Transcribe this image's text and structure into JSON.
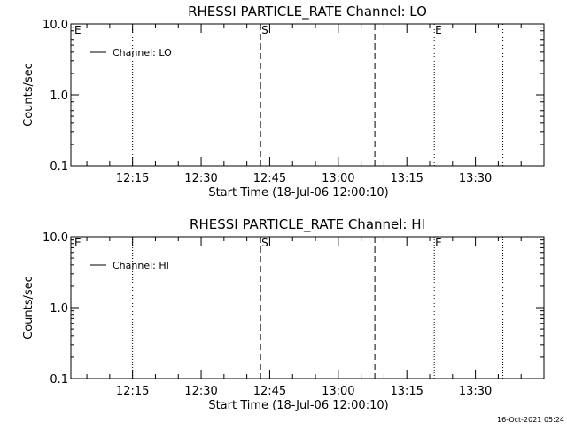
{
  "chart_data": [
    {
      "type": "line",
      "title": "RHESSI PARTICLE_RATE Channel: LO",
      "xlabel": "Start Time (18-Jul-06 12:00:10)",
      "ylabel": "Counts/sec",
      "y_scale": "log",
      "ylim": [
        0.1,
        10.0
      ],
      "y_ticks": [
        {
          "value": 0.1,
          "label": "0.1"
        },
        {
          "value": 1.0,
          "label": "1.0"
        },
        {
          "value": 10.0,
          "label": "10.0"
        }
      ],
      "x_ticks": [
        {
          "label": "12:15"
        },
        {
          "label": "12:30"
        },
        {
          "label": "12:45"
        },
        {
          "label": "13:00"
        },
        {
          "label": "13:15"
        },
        {
          "label": "13:30"
        }
      ],
      "series": [
        {
          "name": "Channel: LO",
          "values": []
        }
      ],
      "legend_position": "top-left",
      "grid": false,
      "markers": [
        {
          "label": "E",
          "style": "dotted",
          "position": "left-edge"
        },
        {
          "label": "",
          "style": "dotted",
          "time": "12:15"
        },
        {
          "label": "S",
          "style": "dashed",
          "time": "12:43"
        },
        {
          "label": "",
          "style": "dashed",
          "time": "13:08"
        },
        {
          "label": "E",
          "style": "dotted",
          "time": "13:21"
        },
        {
          "label": "",
          "style": "dotted",
          "time": "13:36"
        }
      ]
    },
    {
      "type": "line",
      "title": "RHESSI PARTICLE_RATE Channel: HI",
      "xlabel": "Start Time (18-Jul-06 12:00:10)",
      "ylabel": "Counts/sec",
      "y_scale": "log",
      "ylim": [
        0.1,
        10.0
      ],
      "y_ticks": [
        {
          "value": 0.1,
          "label": "0.1"
        },
        {
          "value": 1.0,
          "label": "1.0"
        },
        {
          "value": 10.0,
          "label": "10.0"
        }
      ],
      "x_ticks": [
        {
          "label": "12:15"
        },
        {
          "label": "12:30"
        },
        {
          "label": "12:45"
        },
        {
          "label": "13:00"
        },
        {
          "label": "13:15"
        },
        {
          "label": "13:30"
        }
      ],
      "series": [
        {
          "name": "Channel: HI",
          "values": []
        }
      ],
      "legend_position": "top-left",
      "grid": false,
      "markers": [
        {
          "label": "E",
          "style": "dotted",
          "position": "left-edge"
        },
        {
          "label": "",
          "style": "dotted",
          "time": "12:15"
        },
        {
          "label": "S",
          "style": "dashed",
          "time": "12:43"
        },
        {
          "label": "",
          "style": "dashed",
          "time": "13:08"
        },
        {
          "label": "E",
          "style": "dotted",
          "time": "13:21"
        },
        {
          "label": "",
          "style": "dotted",
          "time": "13:36"
        }
      ]
    }
  ],
  "footer": {
    "timestamp": "16-Oct-2021 05:24"
  }
}
